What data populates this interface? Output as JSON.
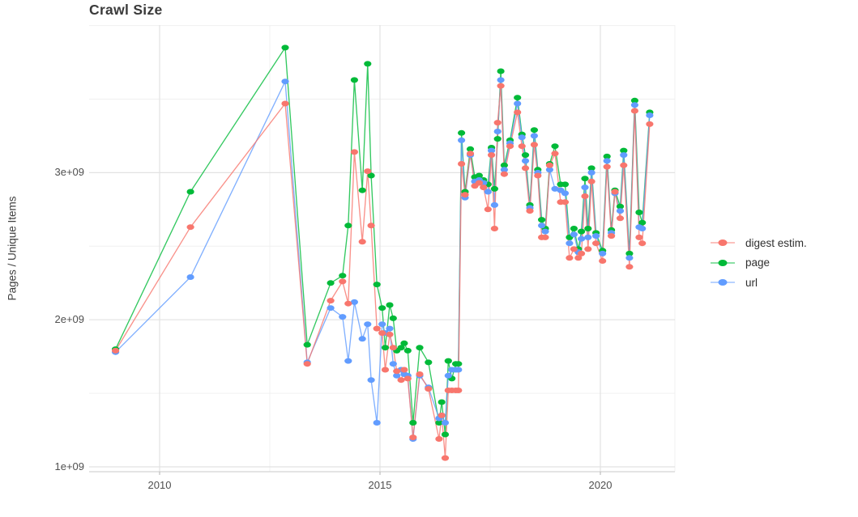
{
  "chart_data": {
    "type": "line",
    "title": "Crawl Size",
    "ylabel": "Pages / Unique Items",
    "xlabel": "",
    "values_in": "billions (1e9)",
    "grid": true,
    "legend_position": "right",
    "xlim": [
      2008.4,
      2021.7
    ],
    "ylim": [
      0.97,
      4.0
    ],
    "x_ticks": {
      "labels": [
        "2010",
        "2015",
        "2020"
      ],
      "values": [
        2010,
        2015,
        2020
      ]
    },
    "x_minor": [
      2012.5,
      2017.5
    ],
    "y_ticks": {
      "labels": [
        "1e+09",
        "2e+09",
        "3e+09"
      ],
      "values": [
        1,
        2,
        3
      ]
    },
    "y_minor": [
      1.5,
      2.5,
      3.5,
      4.0
    ],
    "x": [
      2009.0,
      2010.7,
      2012.85,
      2013.35,
      2013.88,
      2014.15,
      2014.28,
      2014.42,
      2014.6,
      2014.72,
      2014.8,
      2014.93,
      2015.05,
      2015.12,
      2015.22,
      2015.3,
      2015.38,
      2015.48,
      2015.55,
      2015.63,
      2015.75,
      2015.9,
      2016.1,
      2016.34,
      2016.4,
      2016.48,
      2016.55,
      2016.63,
      2016.72,
      2016.78,
      2016.85,
      2016.93,
      2017.05,
      2017.15,
      2017.25,
      2017.35,
      2017.45,
      2017.53,
      2017.6,
      2017.67,
      2017.74,
      2017.82,
      2017.95,
      2018.12,
      2018.22,
      2018.3,
      2018.4,
      2018.5,
      2018.58,
      2018.67,
      2018.75,
      2018.85,
      2018.97,
      2019.1,
      2019.2,
      2019.3,
      2019.4,
      2019.5,
      2019.57,
      2019.65,
      2019.72,
      2019.8,
      2019.9,
      2020.05,
      2020.15,
      2020.25,
      2020.33,
      2020.45,
      2020.53,
      2020.66,
      2020.78,
      2020.88,
      2020.95,
      2021.12
    ],
    "series": [
      {
        "name": "digest estim.",
        "color": "#F8766D",
        "values": [
          1.79,
          2.63,
          3.47,
          1.7,
          2.13,
          2.26,
          2.11,
          3.14,
          2.53,
          3.01,
          2.64,
          1.94,
          1.91,
          1.66,
          1.9,
          1.81,
          1.65,
          1.59,
          1.66,
          1.6,
          1.2,
          1.63,
          1.53,
          1.19,
          1.35,
          1.06,
          1.52,
          1.52,
          1.52,
          1.52,
          3.06,
          2.85,
          3.13,
          2.91,
          2.93,
          2.9,
          2.75,
          3.12,
          2.62,
          3.34,
          3.59,
          2.99,
          3.18,
          3.41,
          3.18,
          3.03,
          2.74,
          3.19,
          2.98,
          2.56,
          2.56,
          3.05,
          3.13,
          2.8,
          2.8,
          2.42,
          2.48,
          2.42,
          2.45,
          2.84,
          2.48,
          2.94,
          2.52,
          2.4,
          3.04,
          2.57,
          2.87,
          2.69,
          3.05,
          2.36,
          3.42,
          2.56,
          2.52,
          3.33
        ]
      },
      {
        "name": "page",
        "color": "#00BA38",
        "values": [
          1.8,
          2.87,
          3.85,
          1.83,
          2.25,
          2.3,
          2.64,
          3.63,
          2.88,
          3.74,
          2.98,
          2.24,
          2.08,
          1.81,
          2.1,
          2.01,
          1.79,
          1.81,
          1.84,
          1.79,
          1.3,
          1.81,
          1.71,
          1.3,
          1.44,
          1.22,
          1.72,
          1.6,
          1.7,
          1.7,
          3.27,
          2.87,
          3.16,
          2.97,
          2.98,
          2.95,
          2.92,
          3.17,
          2.89,
          3.23,
          3.69,
          3.05,
          3.22,
          3.51,
          3.26,
          3.12,
          2.78,
          3.29,
          3.02,
          2.68,
          2.62,
          3.06,
          3.18,
          2.92,
          2.92,
          2.56,
          2.62,
          2.48,
          2.6,
          2.96,
          2.62,
          3.03,
          2.59,
          2.47,
          3.11,
          2.61,
          2.88,
          2.77,
          3.15,
          2.45,
          3.49,
          2.73,
          2.66,
          3.41
        ]
      },
      {
        "name": "url",
        "color": "#619CFF",
        "values": [
          1.78,
          2.29,
          3.62,
          1.71,
          2.08,
          2.02,
          1.72,
          2.12,
          1.87,
          1.97,
          1.59,
          1.3,
          1.97,
          1.91,
          1.94,
          1.7,
          1.62,
          1.66,
          1.63,
          1.62,
          1.19,
          1.62,
          1.54,
          1.33,
          1.35,
          1.3,
          1.62,
          1.66,
          1.66,
          1.66,
          3.22,
          2.83,
          3.12,
          2.94,
          2.95,
          2.93,
          2.87,
          3.15,
          2.78,
          3.28,
          3.63,
          3.02,
          3.2,
          3.47,
          3.24,
          3.08,
          2.76,
          3.25,
          3.0,
          2.64,
          2.6,
          3.02,
          2.89,
          2.88,
          2.86,
          2.52,
          2.58,
          2.46,
          2.55,
          2.9,
          2.56,
          3.0,
          2.57,
          2.45,
          3.08,
          2.59,
          2.86,
          2.74,
          3.12,
          2.42,
          3.46,
          2.63,
          2.62,
          3.39
        ]
      }
    ]
  },
  "colors": {
    "grid_major": "#e2e2e2",
    "grid_minor": "#f0f0f0",
    "axis_line": "#d4d4d4",
    "tick_mark": "#bdbdbd"
  }
}
